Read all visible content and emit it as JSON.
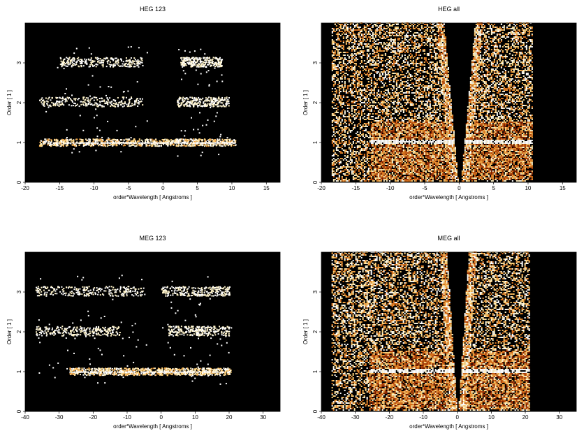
{
  "chart_data": [
    {
      "type": "heatmap",
      "title": "HEG 123",
      "xlabel": "order*Wavelength [ Angstroms ]",
      "ylabel": "Order [ 1 ]",
      "xlim": [
        -20,
        17
      ],
      "ylim": [
        0,
        4
      ],
      "xticks": [
        "-20",
        "-15",
        "-10",
        "-5",
        "0",
        "5",
        "10",
        "15"
      ],
      "yticks": [
        "0",
        "1",
        "2",
        "3"
      ],
      "background": "#000000",
      "mode": "orders",
      "bands": [
        {
          "order": 1,
          "x_range": [
            -18,
            10.5
          ],
          "intensity": "high"
        },
        {
          "order": 2,
          "x_range": [
            -18,
            -3
          ],
          "intensity": "low"
        },
        {
          "order": 2,
          "x_range": [
            2,
            9.5
          ],
          "intensity": "low"
        },
        {
          "order": 3,
          "x_range": [
            -15,
            -3
          ],
          "intensity": "low"
        },
        {
          "order": 3,
          "x_range": [
            2.5,
            8.5
          ],
          "intensity": "low"
        }
      ]
    },
    {
      "type": "heatmap",
      "title": "HEG all",
      "xlabel": "order*Wavelength [ Angstroms ]",
      "ylabel": "Order [ 1 ]",
      "xlim": [
        -20,
        17
      ],
      "ylim": [
        0,
        4
      ],
      "xticks": [
        "-20",
        "-15",
        "-10",
        "-5",
        "0",
        "5",
        "10",
        "15"
      ],
      "yticks": [
        "0",
        "1",
        "2",
        "3"
      ],
      "background": "#000000",
      "mode": "all",
      "data_extent": [
        -18.5,
        10.5
      ],
      "dense_band": [
        -13,
        10.5
      ],
      "empty_wedge_half_angle": 0.25
    },
    {
      "type": "heatmap",
      "title": "MEG 123",
      "xlabel": "order*Wavelength [ Angstroms ]",
      "ylabel": "Order [ 1 ]",
      "xlim": [
        -40,
        35
      ],
      "ylim": [
        0,
        4
      ],
      "xticks": [
        "-40",
        "-30",
        "-20",
        "-10",
        "0",
        "10",
        "20",
        "30"
      ],
      "yticks": [
        "0",
        "1",
        "2",
        "3"
      ],
      "background": "#000000",
      "mode": "orders",
      "bands": [
        {
          "order": 1,
          "x_range": [
            -27,
            20.5
          ],
          "intensity": "high"
        },
        {
          "order": 2,
          "x_range": [
            -37,
            -12
          ],
          "intensity": "low"
        },
        {
          "order": 2,
          "x_range": [
            2,
            20
          ],
          "intensity": "low"
        },
        {
          "order": 3,
          "x_range": [
            -37,
            -5
          ],
          "intensity": "low"
        },
        {
          "order": 3,
          "x_range": [
            0,
            20
          ],
          "intensity": "low"
        }
      ]
    },
    {
      "type": "heatmap",
      "title": "MEG all",
      "xlabel": "order*Wavelength [ Angstroms ]",
      "ylabel": "Order [ 1 ]",
      "xlim": [
        -40,
        35
      ],
      "ylim": [
        0,
        4
      ],
      "xticks": [
        "-40",
        "-30",
        "-20",
        "-10",
        "0",
        "10",
        "20",
        "30"
      ],
      "yticks": [
        "0",
        "1",
        "2",
        "3"
      ],
      "background": "#000000",
      "mode": "all",
      "data_extent": [
        -37,
        21
      ],
      "dense_band": [
        -26,
        21
      ],
      "empty_wedge_half_angle": 0.18
    }
  ]
}
